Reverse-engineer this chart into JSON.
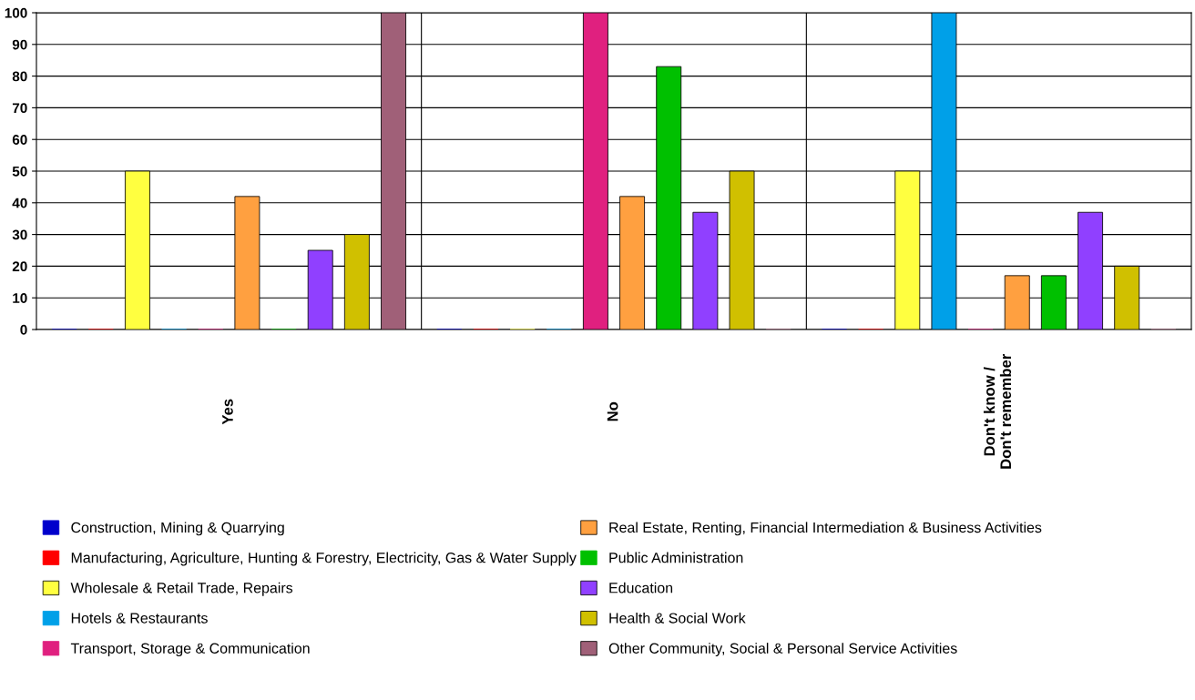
{
  "chart_data": {
    "type": "bar",
    "categories": [
      "Yes",
      "No",
      "Don't know /\nDon't remember"
    ],
    "series": [
      {
        "name": "Construction, Mining & Quarrying",
        "color": "#0000cc",
        "values": [
          0,
          0,
          0
        ]
      },
      {
        "name": "Manufacturing, Agriculture, Hunting & Forestry, Electricity, Gas & Water Supply",
        "color": "#ff0000",
        "values": [
          0,
          0,
          0
        ]
      },
      {
        "name": "Wholesale & Retail Trade, Repairs",
        "color": "#ffff40",
        "values": [
          50,
          0,
          50
        ]
      },
      {
        "name": "Hotels & Restaurants",
        "color": "#00a0e8",
        "values": [
          0,
          0,
          100
        ]
      },
      {
        "name": "Transport, Storage & Communication",
        "color": "#e0207f",
        "values": [
          0,
          100,
          0
        ]
      },
      {
        "name": "Real Estate, Renting, Financial Intermediation & Business Activities",
        "color": "#ffa040",
        "values": [
          42,
          42,
          17
        ]
      },
      {
        "name": "Public Administration",
        "color": "#00c000",
        "values": [
          0,
          83,
          17
        ]
      },
      {
        "name": "Education",
        "color": "#9040ff",
        "values": [
          25,
          37,
          37
        ]
      },
      {
        "name": "Health & Social Work",
        "color": "#d0c000",
        "values": [
          30,
          50,
          20
        ]
      },
      {
        "name": "Other Community, Social & Personal Service Activities",
        "color": "#a06078",
        "values": [
          100,
          0,
          0
        ]
      }
    ],
    "ylim": [
      0,
      100
    ],
    "yticks": [
      0,
      10,
      20,
      30,
      40,
      50,
      60,
      70,
      80,
      90,
      100
    ],
    "grid": true,
    "legend": "bottom"
  }
}
